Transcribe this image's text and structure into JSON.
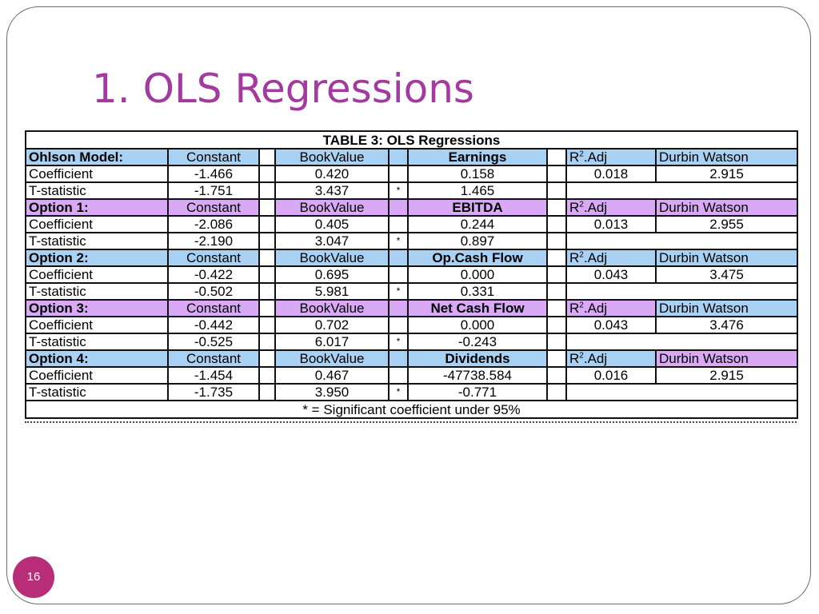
{
  "slide": {
    "title": "1. OLS Regressions",
    "page_number": "16"
  },
  "table": {
    "caption": "TABLE 3: OLS Regressions",
    "footnote": "* = Significant coefficient under 95%",
    "blocks": [
      {
        "name": "Ohlson Model:",
        "constant": "Constant",
        "bookvalue": "BookValue",
        "variable": "Earnings",
        "r2": "R",
        "r2_sup": "2",
        "r2_suffix": ".Adj",
        "dw": "Durbin Watson",
        "coef_label": "Coefficient",
        "coef_const": "-1.466",
        "coef_bv": "0.420",
        "coef_var": "0.158",
        "r2_value": "0.018",
        "dw_value": "2.915",
        "t_label": "T-statistic",
        "t_const": "-1.751",
        "t_bv": "3.437",
        "t_star": "*",
        "t_var": "1.465"
      },
      {
        "name": "Option 1:",
        "constant": "Constant",
        "bookvalue": "BookValue",
        "variable": "EBITDA",
        "r2": "R",
        "r2_sup": "2",
        "r2_suffix": ".Adj",
        "dw": "Durbin Watson",
        "coef_label": "Coefficient",
        "coef_const": "-2.086",
        "coef_bv": "0.405",
        "coef_var": "0.244",
        "r2_value": "0.013",
        "dw_value": "2.955",
        "t_label": "T-statistic",
        "t_const": "-2.190",
        "t_bv": "3.047",
        "t_star": "*",
        "t_var": "0.897"
      },
      {
        "name": "Option 2:",
        "constant": "Constant",
        "bookvalue": "BookValue",
        "variable": "Op.Cash Flow",
        "r2": "R",
        "r2_sup": "2",
        "r2_suffix": ".Adj",
        "dw": "Durbin Watson",
        "coef_label": "Coefficient",
        "coef_const": "-0.422",
        "coef_bv": "0.695",
        "coef_var": "0.000",
        "r2_value": "0.043",
        "dw_value": "3.475",
        "t_label": "T-statistic",
        "t_const": "-0.502",
        "t_bv": "5.981",
        "t_star": "*",
        "t_var": "0.331"
      },
      {
        "name": "Option 3:",
        "constant": "Constant",
        "bookvalue": "BookValue",
        "variable": "Net Cash Flow",
        "r2": "R",
        "r2_sup": "2",
        "r2_suffix": ".Adj",
        "dw": "Durbin Watson",
        "coef_label": "Coefficient",
        "coef_const": "-0.442",
        "coef_bv": "0.702",
        "coef_var": "0.000",
        "r2_value": "0.043",
        "dw_value": "3.476",
        "t_label": "T-statistic",
        "t_const": "-0.525",
        "t_bv": "6.017",
        "t_star": "*",
        "t_var": "-0.243"
      },
      {
        "name": "Option 4:",
        "constant": "Constant",
        "bookvalue": "BookValue",
        "variable": "Dividends",
        "r2": "R",
        "r2_sup": "2",
        "r2_suffix": ".Adj",
        "dw": "Durbin Watson",
        "coef_label": "Coefficient",
        "coef_const": "-1.454",
        "coef_bv": "0.467",
        "coef_var": "-47738.584",
        "r2_value": "0.016",
        "dw_value": "2.915",
        "t_label": "T-statistic",
        "t_const": "-1.735",
        "t_bv": "3.950",
        "t_star": "*",
        "t_var": "-0.771"
      }
    ]
  },
  "colors": {
    "title": "#a43aa0",
    "header_blue": "#a9d1f3",
    "header_purple": "#d9a9f5",
    "page_badge": "#b82d78"
  }
}
